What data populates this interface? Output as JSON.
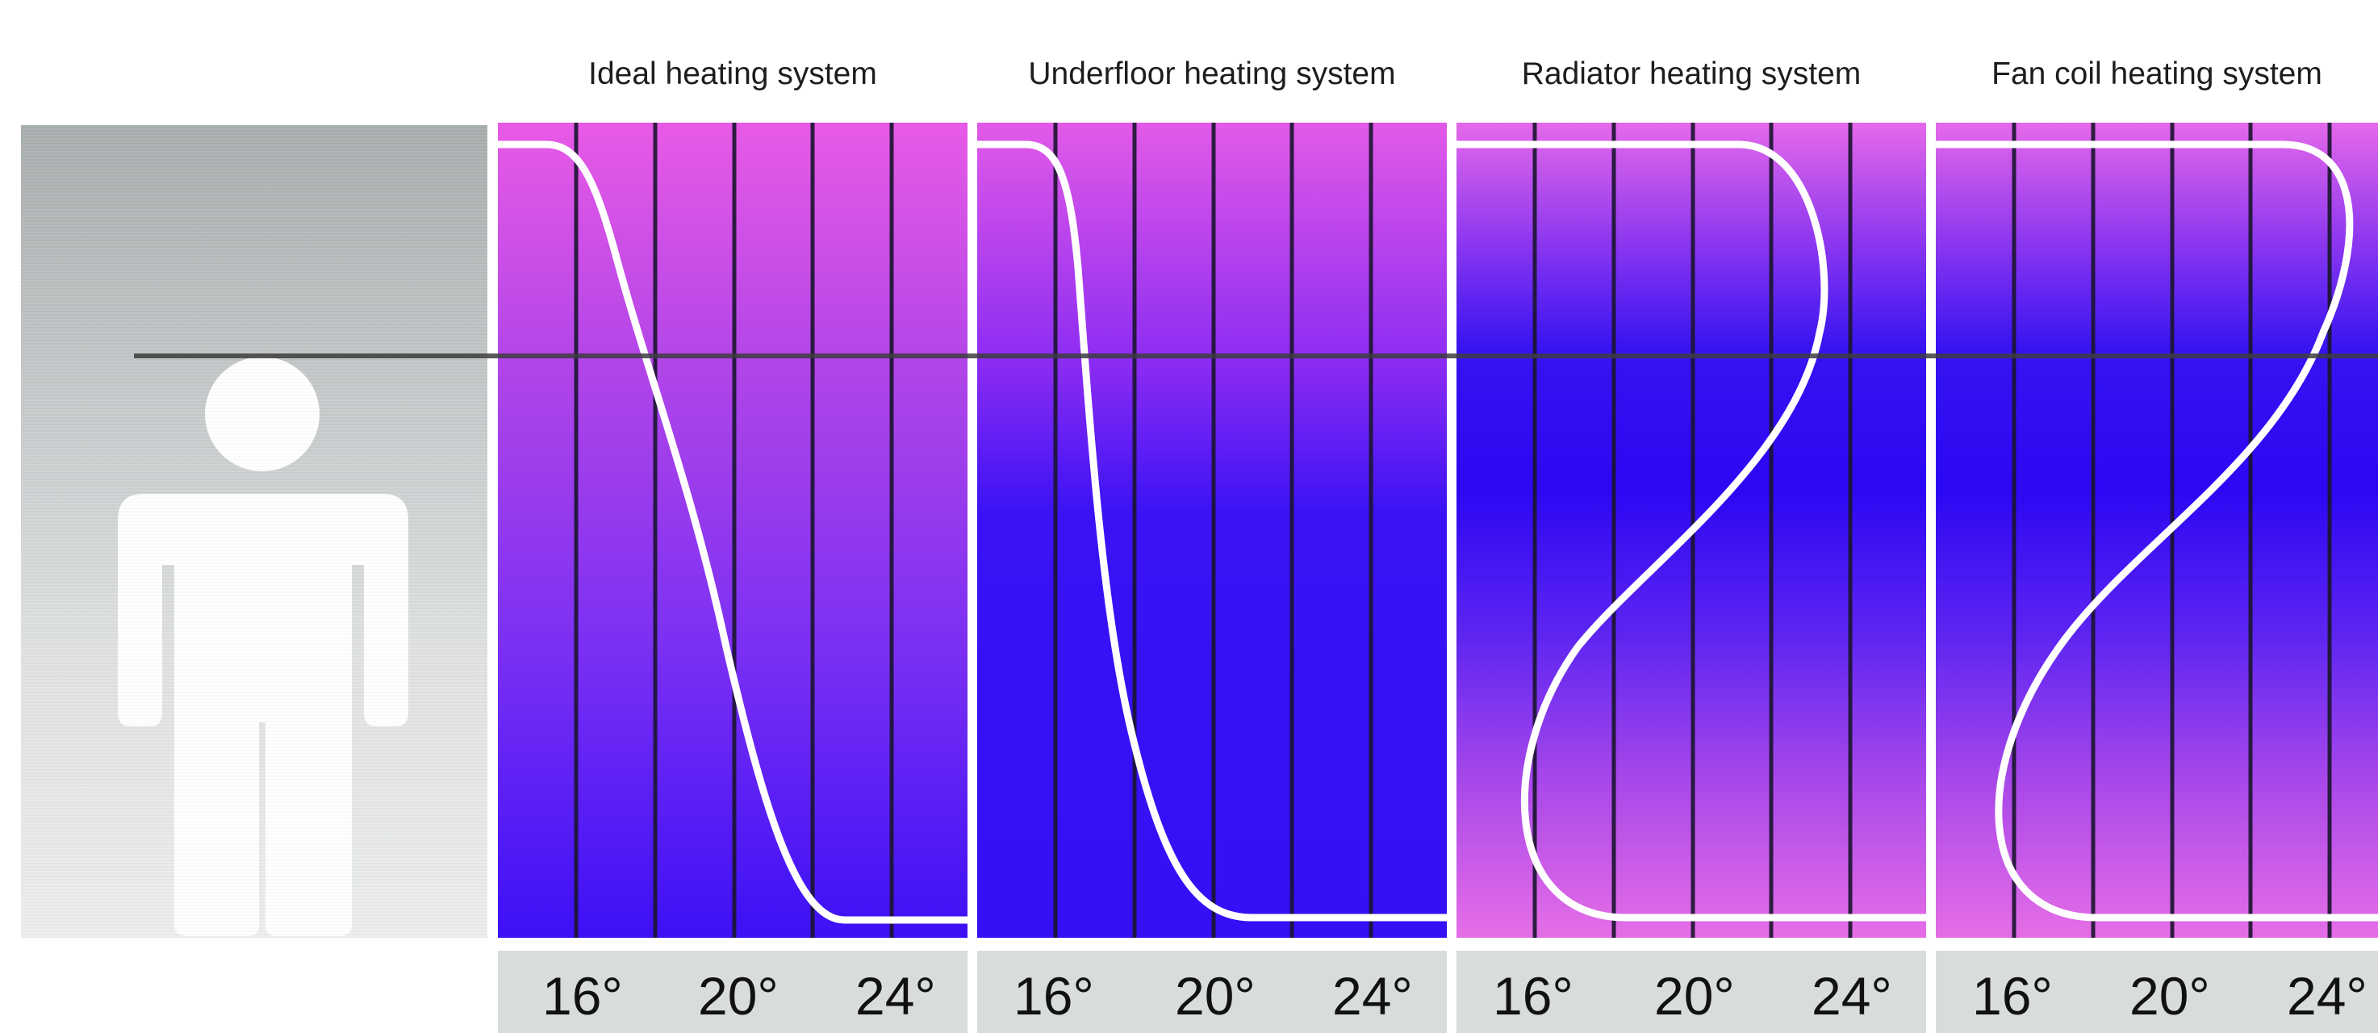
{
  "panels": [
    {
      "id": "ideal",
      "title": "Ideal heating system",
      "ticks": [
        "16°",
        "20°",
        "24°"
      ]
    },
    {
      "id": "underfloor",
      "title": "Underfloor heating system",
      "ticks": [
        "16°",
        "20°",
        "24°"
      ]
    },
    {
      "id": "radiator",
      "title": "Radiator heating system",
      "ticks": [
        "16°",
        "20°",
        "24°"
      ]
    },
    {
      "id": "fancoil",
      "title": "Fan coil heating system",
      "ticks": [
        "16°",
        "20°",
        "24°"
      ]
    }
  ],
  "colors": {
    "warm": "#e85ae6",
    "cool": "#3410f6",
    "curve": "#ffffff",
    "grid": "#1b1530",
    "axis_strip": "#d8dcdd",
    "person": "#ffffff"
  },
  "icons": {
    "person": "person-silhouette-icon"
  }
}
